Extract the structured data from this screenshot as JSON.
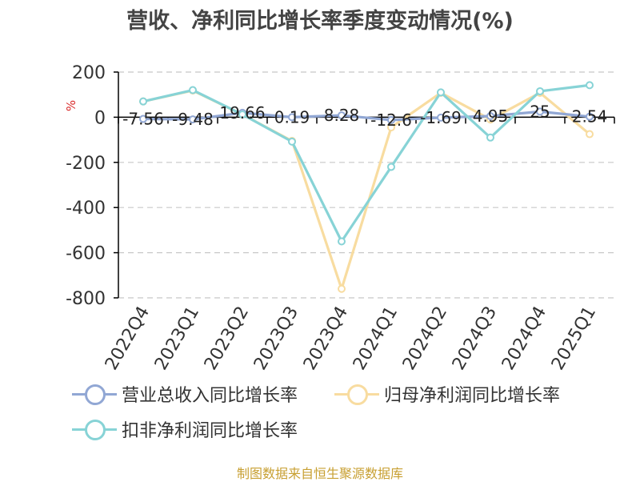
{
  "chart_data": {
    "type": "line",
    "title": "营收、净利同比增长率季度变动情况(%)",
    "ylabel": "%",
    "ylim": [
      -800,
      200
    ],
    "yticks": [
      200,
      0,
      -200,
      -400,
      -600,
      -800
    ],
    "grid": true,
    "legend_position": "bottom",
    "categories": [
      "2022Q4",
      "2023Q1",
      "2023Q2",
      "2023Q3",
      "2023Q4",
      "2024Q1",
      "2024Q2",
      "2024Q3",
      "2024Q4",
      "2025Q1"
    ],
    "series": [
      {
        "name": "营业总收入同比增长率",
        "color": "#91a7d4",
        "values": [
          -7.56,
          -9.48,
          19.66,
          0.19,
          8.28,
          -12.6,
          -1.69,
          4.95,
          25,
          2.54
        ],
        "labels": [
          "-7.56",
          "-9.48",
          "19.66",
          "0.19",
          "8.28",
          "-12.6",
          "-1.69",
          "4.95",
          "25",
          "2.54"
        ]
      },
      {
        "name": "归母净利润同比增长率",
        "color": "#f8dca0",
        "values": [
          70,
          118,
          12,
          -105,
          -760,
          -45,
          108,
          -10,
          108,
          -75
        ]
      },
      {
        "name": "扣非净利润同比增长率",
        "color": "#87d3d6",
        "values": [
          70,
          120,
          12,
          -108,
          -550,
          -220,
          110,
          -90,
          115,
          142
        ]
      }
    ],
    "source": "制图数据来自恒生聚源数据库"
  }
}
